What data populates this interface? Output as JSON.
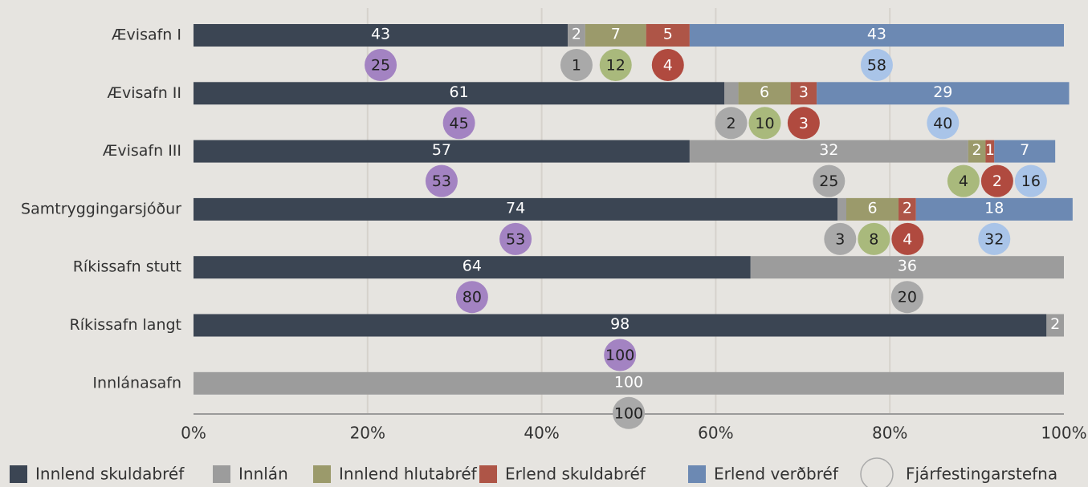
{
  "chart_data": {
    "type": "stacked-bar-with-targets",
    "categories": [
      "Ævisafn I",
      "Ævisafn II",
      "Ævisafn III",
      "Samtryggingarsjóður",
      "Ríkissafn stutt",
      "Ríkissafn langt",
      "Innlánasafn"
    ],
    "series": [
      {
        "name": "Innlend skuldabréf",
        "color": "#3b4553",
        "target_color": "#a383c2",
        "values": [
          43,
          61,
          57,
          74,
          64,
          98,
          null
        ],
        "targets": [
          25,
          45,
          53,
          53,
          80,
          100,
          null
        ]
      },
      {
        "name": "Innlán",
        "color": "#9c9c9c",
        "target_color": "#a9a9a9",
        "values": [
          2,
          1.6,
          32,
          1,
          36,
          2,
          100
        ],
        "value_labels": [
          "2",
          null,
          "32",
          null,
          "36",
          "2",
          "100"
        ],
        "targets": [
          1,
          2,
          25,
          3,
          20,
          null,
          100
        ]
      },
      {
        "name": "Innlend hlutabréf",
        "color": "#9b9a6b",
        "target_color": "#a9b97c",
        "values": [
          7,
          6,
          2,
          6,
          null,
          null,
          null
        ],
        "targets": [
          12,
          10,
          4,
          8,
          null,
          null,
          null
        ]
      },
      {
        "name": "Erlend skuldabréf",
        "color": "#ae5547",
        "target_color": "#b04a3f",
        "values": [
          5,
          3,
          1,
          2,
          null,
          null,
          null
        ],
        "targets": [
          4,
          3,
          2,
          4,
          null,
          null,
          null
        ]
      },
      {
        "name": "Erlend verðbréf",
        "color": "#6c89b3",
        "target_color": "#a9c4e8",
        "values": [
          43,
          29,
          7,
          18,
          null,
          null,
          null
        ],
        "targets": [
          58,
          40,
          16,
          32,
          null,
          null,
          null
        ]
      }
    ],
    "target_name": "Fjárfestingarstefna",
    "xlim": [
      0,
      100
    ],
    "xticks": [
      {
        "value": 0,
        "label": "0%"
      },
      {
        "value": 20,
        "label": "20%"
      },
      {
        "value": 40,
        "label": "40%"
      },
      {
        "value": 60,
        "label": "60%"
      },
      {
        "value": 80,
        "label": "80%"
      },
      {
        "value": 100,
        "label": "100%"
      }
    ],
    "grid": true
  }
}
